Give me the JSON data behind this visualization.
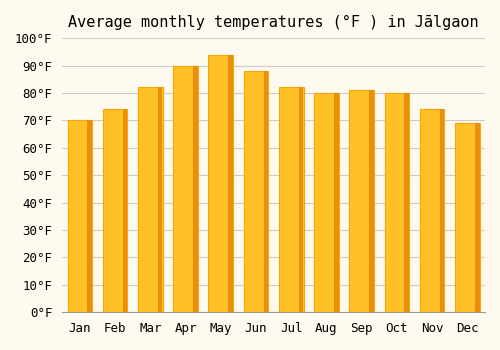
{
  "title": "Average monthly temperatures (°F ) in Jālgaon",
  "months": [
    "Jan",
    "Feb",
    "Mar",
    "Apr",
    "May",
    "Jun",
    "Jul",
    "Aug",
    "Sep",
    "Oct",
    "Nov",
    "Dec"
  ],
  "values": [
    70,
    74,
    82,
    90,
    94,
    88,
    82,
    80,
    81,
    80,
    74,
    69
  ],
  "bar_color_face": "#FFC125",
  "bar_color_edge": "#FFA500",
  "background_color": "#FFFAF0",
  "grid_color": "#CCCCCC",
  "ytick_labels": [
    "0°F",
    "10°F",
    "20°F",
    "30°F",
    "40°F",
    "50°F",
    "60°F",
    "70°F",
    "80°F",
    "90°F",
    "100°F"
  ],
  "ytick_values": [
    0,
    10,
    20,
    30,
    40,
    50,
    60,
    70,
    80,
    90,
    100
  ],
  "ylim": [
    0,
    100
  ],
  "title_fontsize": 11,
  "tick_fontsize": 9
}
